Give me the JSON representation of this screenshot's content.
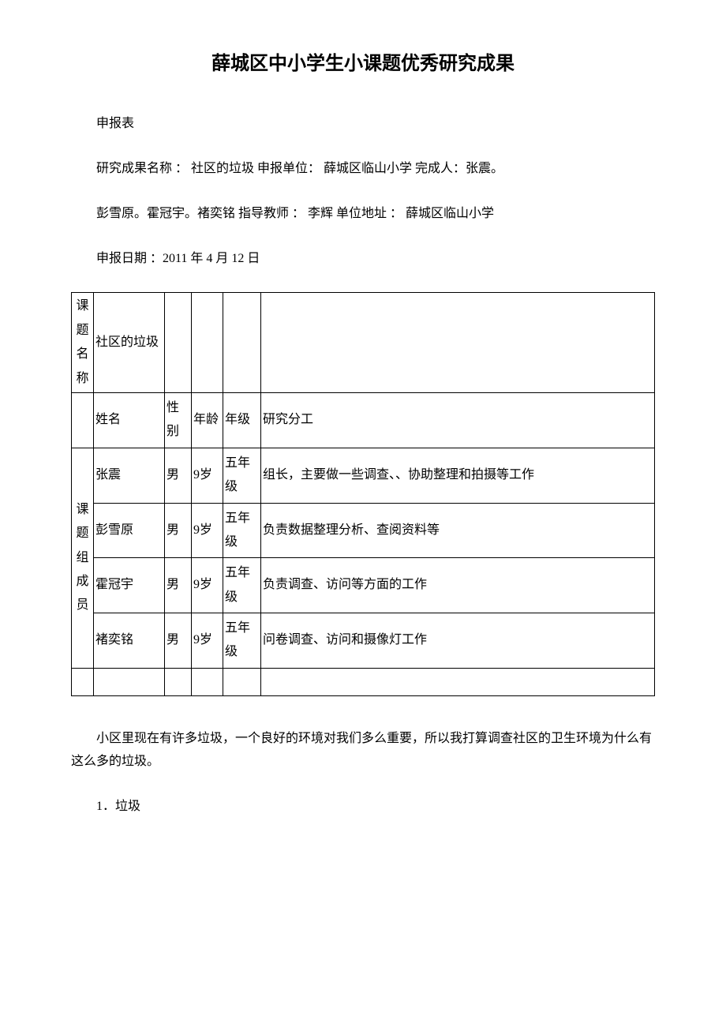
{
  "title": "薛城区中小学生小课题优秀研究成果",
  "line1": "申报表",
  "line2": "研究成果名称 ： 社区的垃圾  申报单位：  薛城区临山小学  完成人：张震。",
  "line3": "彭雪原。霍冠宇。褚奕铭  指导教师 ：  李辉  单位地址 ：  薛城区临山小学",
  "line4": "申报日期 ：2011 年 4 月 12 日",
  "row1_label": "课题名称",
  "row1_value": "社区的垃圾",
  "header": {
    "name": "姓名",
    "gender": "性别",
    "age": "年龄",
    "grade": "年级",
    "role": "研究分工"
  },
  "group_label": "课题组成员",
  "members": [
    {
      "name": "张震",
      "gender": "男",
      "age": "9岁",
      "grade": "五年级",
      "role": "组长，主要做一些调查、、协助整理和拍摄等工作"
    },
    {
      "name": "彭雪原",
      "gender": "男",
      "age": "9岁",
      "grade": "五年级",
      "role": "负责数据整理分析、查阅资料等"
    },
    {
      "name": "霍冠宇",
      "gender": "男",
      "age": "9岁",
      "grade": "五年级",
      "role": "负责调查、访问等方面的工作"
    },
    {
      "name": "褚奕铭",
      "gender": "男",
      "age": "9岁",
      "grade": "五年级",
      "role": "问卷调查、访问和摄像灯工作"
    }
  ],
  "body1": "小区里现在有许多垃圾，一个良好的环境对我们多么重要，所以我打算调查社区的卫生环境为什么有这么多的垃圾。",
  "body2": "1．垃圾",
  "styles": {
    "background": "#ffffff",
    "text_color": "#000000",
    "border_color": "#000000",
    "title_fontsize": 24,
    "body_fontsize": 16,
    "font_family": "SimSun"
  }
}
